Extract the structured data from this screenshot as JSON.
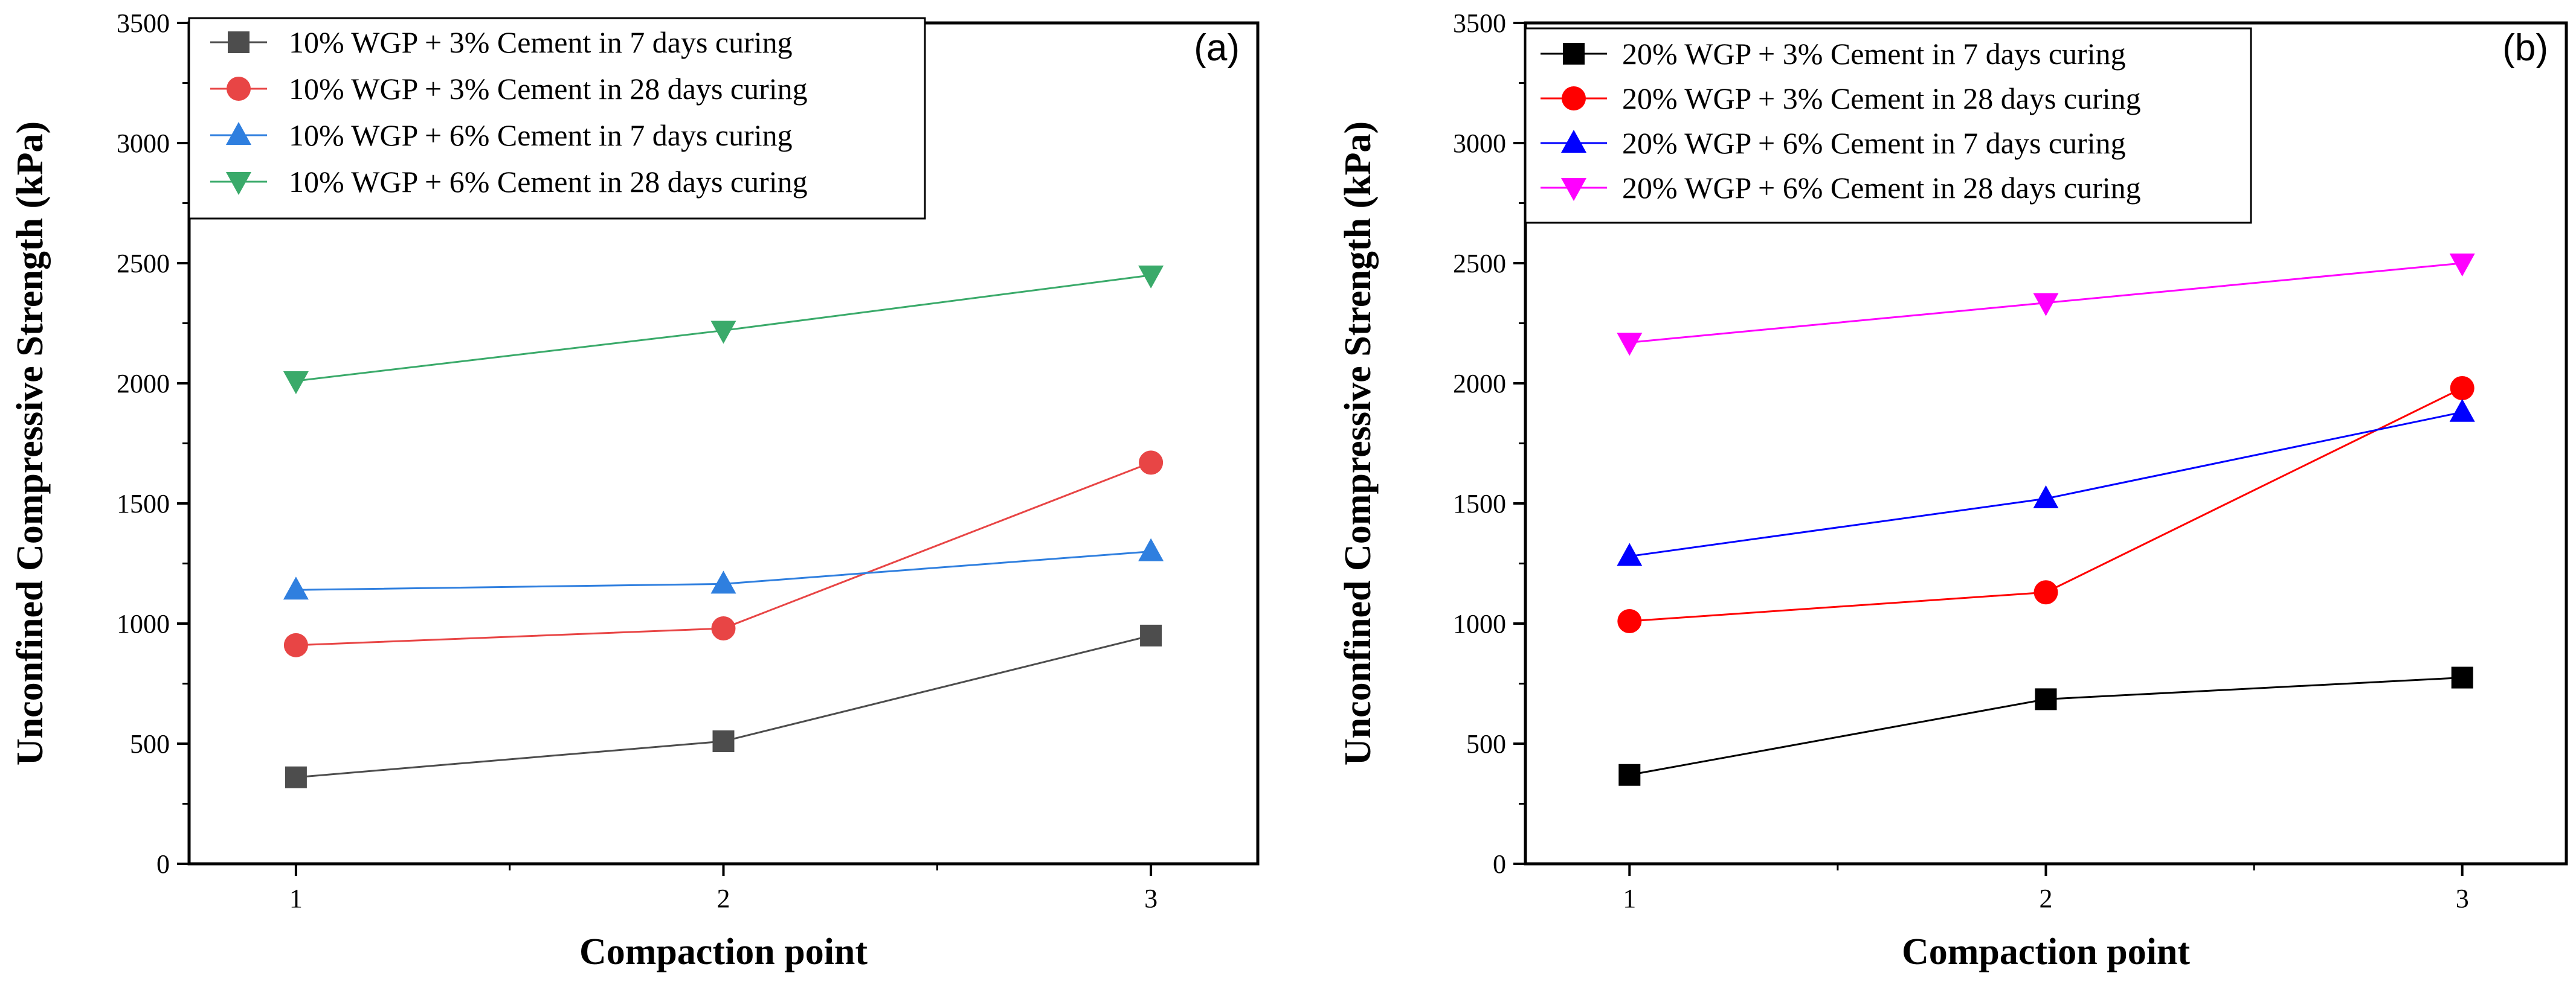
{
  "chart_data": [
    {
      "type": "line",
      "panel_label": "(a)",
      "xlabel": "Compaction point",
      "ylabel": "Unconfined Compressive Strength (kPa)",
      "x": [
        1,
        2,
        3
      ],
      "x_tick_labels": [
        "1",
        "2",
        "3"
      ],
      "xlim": [
        0.75,
        3.25
      ],
      "ylim": [
        0,
        3500
      ],
      "y_ticks": [
        0,
        500,
        1000,
        1500,
        2000,
        2500,
        3000,
        3500
      ],
      "y_tick_labels": [
        "0",
        "500",
        "1000",
        "1500",
        "2000",
        "2500",
        "3000",
        "3500"
      ],
      "legend_position": "top-left",
      "series": [
        {
          "name": "10% WGP + 3% Cement in 7 days curing",
          "marker": "square",
          "color": "#4d4d4d",
          "values": [
            360,
            510,
            950
          ]
        },
        {
          "name": "10% WGP + 3% Cement in 28 days curing",
          "marker": "circle",
          "color": "#e84545",
          "values": [
            910,
            980,
            1670
          ]
        },
        {
          "name": "10% WGP + 6% Cement in 7 days curing",
          "marker": "triangle-up",
          "color": "#2f7fdf",
          "values": [
            1140,
            1165,
            1300
          ]
        },
        {
          "name": "10% WGP + 6% Cement in 28 days curing",
          "marker": "triangle-down",
          "color": "#3aaa6a",
          "values": [
            2010,
            2220,
            2450
          ]
        }
      ]
    },
    {
      "type": "line",
      "panel_label": "(b)",
      "xlabel": "Compaction point",
      "ylabel": "Unconfined Compressive Strength (kPa)",
      "x": [
        1,
        2,
        3
      ],
      "x_tick_labels": [
        "1",
        "2",
        "3"
      ],
      "xlim": [
        0.75,
        3.25
      ],
      "ylim": [
        0,
        3500
      ],
      "y_ticks": [
        0,
        500,
        1000,
        1500,
        2000,
        2500,
        3000,
        3500
      ],
      "y_tick_labels": [
        "0",
        "500",
        "1000",
        "1500",
        "2000",
        "2500",
        "3000",
        "3500"
      ],
      "legend_position": "top-left",
      "series": [
        {
          "name": "20% WGP + 3% Cement in 7 days curing",
          "marker": "square",
          "color": "#000000",
          "values": [
            370,
            685,
            775
          ]
        },
        {
          "name": "20% WGP + 3% Cement in 28 days curing",
          "marker": "circle",
          "color": "#ff0000",
          "values": [
            1010,
            1130,
            1980
          ]
        },
        {
          "name": "20% WGP + 6% Cement in 7 days curing",
          "marker": "triangle-up",
          "color": "#0000ff",
          "values": [
            1280,
            1520,
            1880
          ]
        },
        {
          "name": "20% WGP + 6% Cement in 28 days curing",
          "marker": "triangle-down",
          "color": "#ff00ff",
          "values": [
            2170,
            2335,
            2500
          ]
        }
      ]
    }
  ]
}
